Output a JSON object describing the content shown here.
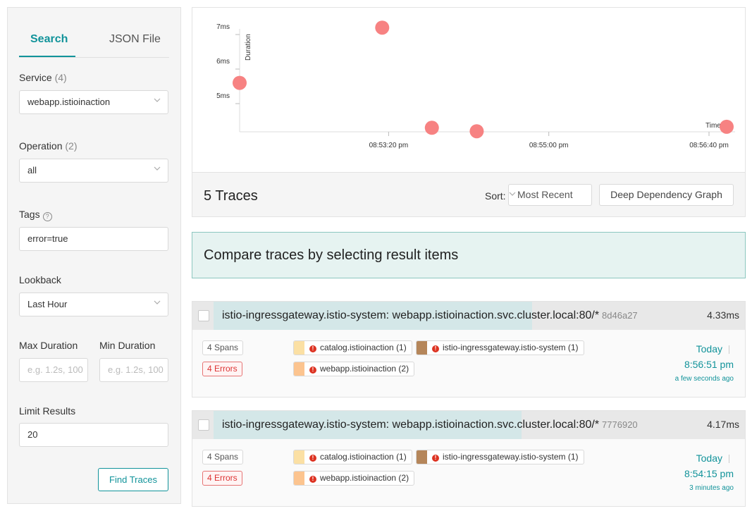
{
  "sidebar": {
    "tabs": [
      "Search",
      "JSON File"
    ],
    "service": {
      "label": "Service",
      "count": "(4)",
      "value": "webapp.istioinaction"
    },
    "operation": {
      "label": "Operation",
      "count": "(2)",
      "value": "all"
    },
    "tags": {
      "label": "Tags",
      "help": "?",
      "value": "error=true"
    },
    "lookback": {
      "label": "Lookback",
      "value": "Last Hour"
    },
    "max_duration": {
      "label": "Max Duration",
      "placeholder": "e.g. 1.2s, 100"
    },
    "min_duration": {
      "label": "Min Duration",
      "placeholder": "e.g. 1.2s, 100"
    },
    "limit": {
      "label": "Limit Results",
      "value": "20"
    },
    "find_label": "Find Traces"
  },
  "chart_data": {
    "type": "scatter",
    "ylabel": "Duration",
    "xlabel": "Time",
    "y_ticks": [
      "5ms",
      "6ms",
      "7ms"
    ],
    "x_ticks": [
      "08:53:20 pm",
      "08:55:00 pm",
      "08:56:40 pm"
    ],
    "x_tick_seconds": [
      200,
      300,
      400
    ],
    "ylim_ms": [
      4.2,
      7.3
    ],
    "xlim_seconds": [
      107,
      411
    ],
    "points": [
      {
        "x_seconds": 107,
        "y_ms": 5.6
      },
      {
        "x_seconds": 196,
        "y_ms": 7.2
      },
      {
        "x_seconds": 227,
        "y_ms": 4.3
      },
      {
        "x_seconds": 255,
        "y_ms": 4.2
      },
      {
        "x_seconds": 411,
        "y_ms": 4.33
      }
    ],
    "point_color": "#f77b7b"
  },
  "results": {
    "count_label": "5 Traces",
    "sort_label": "Sort:",
    "sort_value": "Most Recent",
    "ddg_label": "Deep Dependency Graph"
  },
  "compare_text": "Compare traces by selecting result items",
  "traces": [
    {
      "title": "istio-ingressgateway.istio-system: webapp.istioinaction.svc.cluster.local:80/*",
      "id": "8d46a27",
      "duration": "4.33ms",
      "spans": "4 Spans",
      "errors": "4 Errors",
      "services": [
        "catalog.istioinaction (1)",
        "istio-ingressgateway.istio-system (1)",
        "webapp.istioinaction (2)"
      ],
      "day": "Today",
      "time": "8:56:51 pm",
      "ago": "a few seconds ago",
      "fill_fraction": 0.6
    },
    {
      "title": "istio-ingressgateway.istio-system: webapp.istioinaction.svc.cluster.local:80/*",
      "id": "7776920",
      "duration": "4.17ms",
      "spans": "4 Spans",
      "errors": "4 Errors",
      "services": [
        "catalog.istioinaction (1)",
        "istio-ingressgateway.istio-system (1)",
        "webapp.istioinaction (2)"
      ],
      "day": "Today",
      "time": "8:54:15 pm",
      "ago": "3 minutes ago",
      "fill_fraction": 0.58
    }
  ],
  "colors": {
    "accent": "#11939a",
    "catalog": "#fbe0a4",
    "gateway": "#b5865a",
    "webapp": "#fcc48f",
    "error": "#d33333"
  }
}
